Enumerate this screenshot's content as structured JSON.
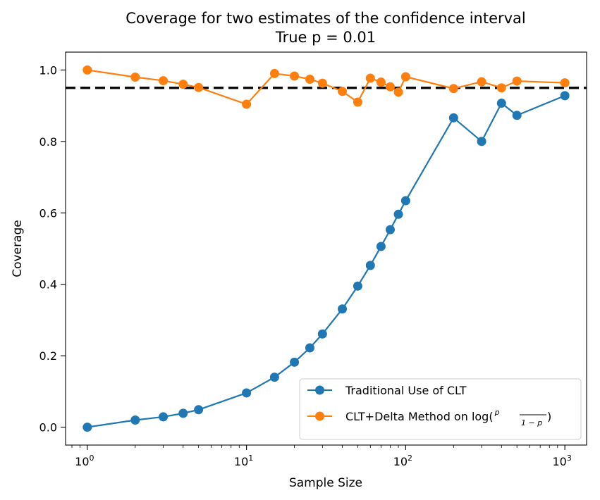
{
  "chart_data": {
    "type": "line",
    "title": "Coverage for two estimates of the confidence interval",
    "subtitle": "True p = 0.01",
    "xlabel": "Sample Size",
    "ylabel": "Coverage",
    "xscale": "log",
    "xlim": [
      0.73,
      1370
    ],
    "ylim": [
      -0.05,
      1.05
    ],
    "grid": false,
    "legend_position": "bottom-right",
    "x_ticks": [
      {
        "base": "10",
        "exp": "0",
        "value": 1
      },
      {
        "base": "10",
        "exp": "1",
        "value": 10
      },
      {
        "base": "10",
        "exp": "2",
        "value": 100
      },
      {
        "base": "10",
        "exp": "3",
        "value": 1000
      }
    ],
    "y_ticks": [
      "0.0",
      "0.2",
      "0.4",
      "0.6",
      "0.8",
      "1.0"
    ],
    "reference_line": {
      "y": 0.95,
      "style": "dashed",
      "color": "#000000"
    },
    "x": [
      1,
      2,
      3,
      4,
      5,
      10,
      15,
      20,
      25,
      30,
      40,
      50,
      60,
      70,
      80,
      90,
      100,
      200,
      300,
      400,
      500,
      1000
    ],
    "series": [
      {
        "name": "Traditional Use of CLT",
        "color": "#1f77b4",
        "values": [
          0.0,
          0.02,
          0.029,
          0.039,
          0.049,
          0.096,
          0.14,
          0.182,
          0.222,
          0.261,
          0.331,
          0.395,
          0.453,
          0.506,
          0.553,
          0.596,
          0.634,
          0.866,
          0.8,
          0.907,
          0.873,
          0.928
        ]
      },
      {
        "name": "CLT+Delta Method on log(",
        "name_fraction": {
          "numerator": "p",
          "denominator": "1 − p",
          "suffix": ")"
        },
        "color": "#ff7f0e",
        "values": [
          1.0,
          0.98,
          0.97,
          0.96,
          0.951,
          0.904,
          0.99,
          0.983,
          0.974,
          0.963,
          0.94,
          0.91,
          0.977,
          0.966,
          0.953,
          0.938,
          0.981,
          0.948,
          0.967,
          0.95,
          0.969,
          0.964
        ]
      }
    ]
  }
}
